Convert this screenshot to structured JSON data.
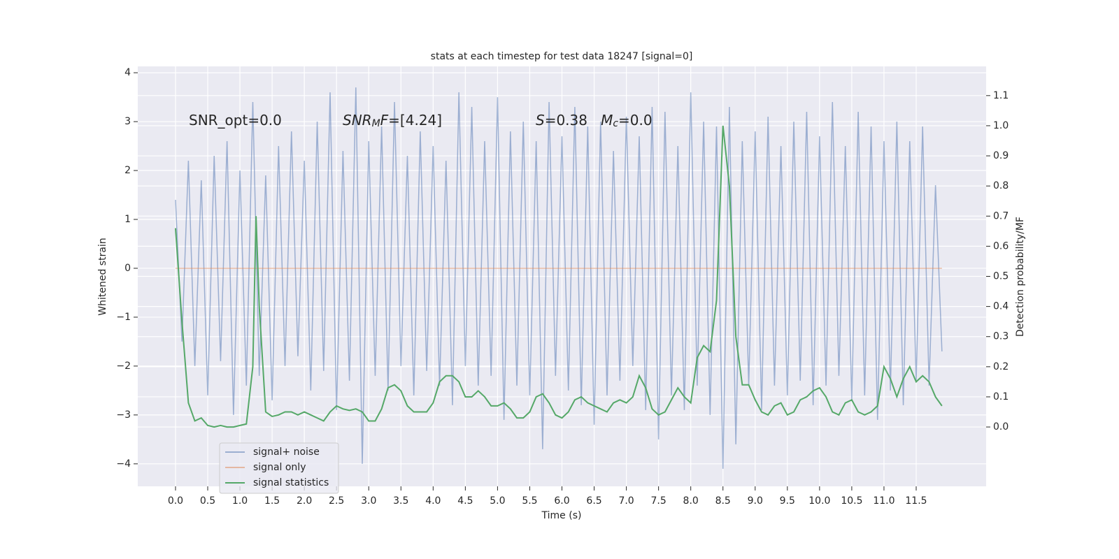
{
  "chart_data": {
    "type": "line",
    "title": "stats at each timestep for test data 18247 [signal=0]",
    "xlabel": "Time (s)",
    "ylabel": "Whitened strain",
    "y2label": "Detection probability/MF",
    "grid": true,
    "legend": "lower left",
    "xlim": [
      -0.586,
      12.586
    ],
    "ylim": [
      -4.46,
      4.13
    ],
    "y2lim": [
      -0.197,
      1.197
    ],
    "xticks": [
      {
        "value": 0,
        "label": "0.0"
      },
      0.5,
      {
        "value": 1,
        "label": "1.0"
      },
      1.5,
      {
        "value": 2,
        "label": "2.0"
      },
      2.5,
      {
        "value": 3,
        "label": "3.0"
      },
      3.5,
      {
        "value": 4,
        "label": "4.0"
      },
      4.5,
      {
        "value": 5,
        "label": "5.0"
      },
      5.5,
      {
        "value": 6,
        "label": "6.0"
      },
      6.5,
      {
        "value": 7,
        "label": "7.0"
      },
      7.5,
      {
        "value": 8,
        "label": "8.0"
      },
      8.5,
      {
        "value": 9,
        "label": "9.0"
      },
      9.5,
      {
        "value": 10,
        "label": "10.0"
      },
      10.5,
      {
        "value": 11,
        "label": "11.0"
      },
      11.5
    ],
    "yticks": [
      {
        "value": -4,
        "label": "−4"
      },
      {
        "value": -3,
        "label": "−3"
      },
      {
        "value": -2,
        "label": "−2"
      },
      {
        "value": -1,
        "label": "−1"
      },
      0,
      1,
      2,
      3,
      4
    ],
    "y2ticks": [
      {
        "value": 0,
        "label": "0.0"
      },
      0.1,
      0.2,
      0.3,
      0.4,
      0.5,
      0.6,
      0.7,
      0.8,
      0.9,
      {
        "value": 1,
        "label": "1.0"
      },
      1.1
    ],
    "annotations": [
      {
        "parts": [
          {
            "text": "SNR_opt=0.0"
          }
        ]
      },
      {
        "parts": [
          {
            "text": "SNR",
            "italic": true
          },
          {
            "text": "M",
            "italic": true,
            "sub": true
          },
          {
            "text": "F",
            "italic": true
          },
          {
            "text": "=[4.24]"
          }
        ]
      },
      {
        "parts": [
          {
            "text": "S",
            "italic": true
          },
          {
            "text": "=0.38   "
          },
          {
            "text": "M",
            "italic": true
          },
          {
            "text": "c",
            "italic": true,
            "sub": true
          },
          {
            "text": "=0.0"
          }
        ]
      }
    ],
    "x": [
      0,
      0.1,
      0.2,
      0.3,
      0.4,
      0.5,
      0.6,
      0.7,
      0.8,
      0.9,
      1,
      1.1,
      1.2,
      1.3,
      1.4,
      1.5,
      1.6,
      1.7,
      1.8,
      1.9,
      2,
      2.1,
      2.2,
      2.3,
      2.4,
      2.5,
      2.6,
      2.7,
      2.8,
      2.9,
      3,
      3.1,
      3.2,
      3.3,
      3.4,
      3.5,
      3.6,
      3.7,
      3.8,
      3.9,
      4,
      4.1,
      4.2,
      4.3,
      4.4,
      4.5,
      4.6,
      4.7,
      4.8,
      4.9,
      5,
      5.1,
      5.2,
      5.3,
      5.4,
      5.5,
      5.6,
      5.7,
      5.8,
      5.9,
      6,
      6.1,
      6.2,
      6.3,
      6.4,
      6.5,
      6.6,
      6.7,
      6.8,
      6.9,
      7,
      7.1,
      7.2,
      7.3,
      7.4,
      7.5,
      7.6,
      7.7,
      7.8,
      7.9,
      8,
      8.1,
      8.2,
      8.3,
      8.4,
      8.5,
      8.6,
      8.7,
      8.8,
      8.9,
      9,
      9.1,
      9.2,
      9.3,
      9.4,
      9.5,
      9.6,
      9.7,
      9.8,
      9.9,
      10,
      10.1,
      10.2,
      10.3,
      10.4,
      10.5,
      10.6,
      10.7,
      10.8,
      10.9,
      11,
      11.1,
      11.2,
      11.3,
      11.4,
      11.5,
      11.6,
      11.7,
      11.8,
      11.9
    ],
    "series": [
      {
        "name": "signal+ noise",
        "color": "#4c72b0",
        "opacity": 0.5,
        "values": [
          1.4,
          -1.5,
          2.2,
          -2.0,
          1.8,
          -2.6,
          2.3,
          -1.9,
          2.6,
          -3.0,
          2.0,
          -2.4,
          3.4,
          -2.2,
          1.9,
          -2.7,
          2.5,
          -2.0,
          2.8,
          -1.8,
          2.2,
          -2.5,
          3.0,
          -2.1,
          3.6,
          -2.9,
          2.4,
          -2.3,
          3.7,
          -4.0,
          2.6,
          -2.2,
          2.9,
          -2.5,
          3.4,
          -2.0,
          2.3,
          -2.6,
          2.8,
          -2.1,
          2.5,
          -2.4,
          2.2,
          -2.8,
          3.6,
          -2.0,
          3.3,
          -2.4,
          2.6,
          -2.2,
          3.5,
          -3.1,
          2.8,
          -2.4,
          3.0,
          -2.6,
          2.6,
          -3.7,
          3.4,
          -2.2,
          2.7,
          -2.5,
          3.3,
          -2.8,
          2.9,
          -3.2,
          3.0,
          -2.6,
          2.4,
          -2.3,
          3.1,
          -2.0,
          2.7,
          -2.9,
          3.3,
          -3.5,
          3.2,
          -2.6,
          2.5,
          -2.9,
          3.6,
          -2.4,
          3.0,
          -3.0,
          2.9,
          -4.1,
          3.3,
          -3.6,
          2.6,
          -2.4,
          2.8,
          -2.9,
          3.1,
          -2.4,
          2.5,
          -2.6,
          3.0,
          -2.3,
          3.2,
          -2.8,
          2.7,
          -2.4,
          3.4,
          -2.2,
          2.5,
          -2.7,
          3.2,
          -2.6,
          2.9,
          -3.1,
          2.6,
          -2.5,
          3.0,
          -2.8,
          2.6,
          -2.3,
          2.9,
          -2.4,
          1.7,
          -1.7
        ]
      },
      {
        "name": "signal only",
        "color": "#dd8452",
        "opacity": 0.5,
        "values": [
          0,
          0,
          0,
          0,
          0,
          0,
          0,
          0,
          0,
          0,
          0,
          0,
          0,
          0,
          0,
          0,
          0,
          0,
          0,
          0,
          0,
          0,
          0,
          0,
          0,
          0,
          0,
          0,
          0,
          0,
          0,
          0,
          0,
          0,
          0,
          0,
          0,
          0,
          0,
          0,
          0,
          0,
          0,
          0,
          0,
          0,
          0,
          0,
          0,
          0,
          0,
          0,
          0,
          0,
          0,
          0,
          0,
          0,
          0,
          0,
          0,
          0,
          0,
          0,
          0,
          0,
          0,
          0,
          0,
          0,
          0,
          0,
          0,
          0,
          0,
          0,
          0,
          0,
          0,
          0,
          0,
          0,
          0,
          0,
          0,
          0,
          0,
          0,
          0,
          0,
          0,
          0,
          0,
          0,
          0,
          0,
          0,
          0,
          0,
          0,
          0,
          0,
          0,
          0,
          0,
          0,
          0,
          0,
          0,
          0,
          0,
          0,
          0,
          0,
          0,
          0,
          0,
          0,
          0,
          0
        ]
      },
      {
        "name": "signal statistics",
        "color": "#55a868",
        "axis": "y2",
        "x": [
          0,
          0.1,
          0.2,
          0.3,
          0.4,
          0.5,
          0.6,
          0.7,
          0.8,
          0.9,
          1,
          1.1,
          1.2,
          1.25,
          1.3,
          1.4,
          1.5,
          1.6,
          1.7,
          1.8,
          1.9,
          2,
          2.1,
          2.2,
          2.3,
          2.4,
          2.5,
          2.6,
          2.7,
          2.8,
          2.9,
          3,
          3.1,
          3.2,
          3.3,
          3.4,
          3.5,
          3.6,
          3.7,
          3.8,
          3.9,
          4,
          4.1,
          4.2,
          4.3,
          4.4,
          4.5,
          4.6,
          4.7,
          4.8,
          4.9,
          5,
          5.1,
          5.2,
          5.3,
          5.4,
          5.5,
          5.6,
          5.7,
          5.8,
          5.9,
          6,
          6.1,
          6.2,
          6.3,
          6.4,
          6.5,
          6.6,
          6.7,
          6.8,
          6.9,
          7,
          7.1,
          7.2,
          7.3,
          7.4,
          7.5,
          7.6,
          7.7,
          7.8,
          7.9,
          8,
          8.1,
          8.2,
          8.3,
          8.4,
          8.5,
          8.6,
          8.7,
          8.8,
          8.9,
          9,
          9.1,
          9.2,
          9.3,
          9.4,
          9.5,
          9.6,
          9.7,
          9.8,
          9.9,
          10,
          10.1,
          10.2,
          10.3,
          10.4,
          10.5,
          10.6,
          10.7,
          10.8,
          10.9,
          11,
          11.1,
          11.2,
          11.3,
          11.4,
          11.5,
          11.6,
          11.7,
          11.8,
          11.9
        ],
        "values": [
          0.66,
          0.35,
          0.08,
          0.02,
          0.03,
          0.005,
          0.0,
          0.005,
          0.0,
          0.0,
          0.005,
          0.01,
          0.2,
          0.7,
          0.4,
          0.05,
          0.035,
          0.04,
          0.05,
          0.05,
          0.04,
          0.05,
          0.04,
          0.03,
          0.02,
          0.05,
          0.07,
          0.06,
          0.055,
          0.06,
          0.05,
          0.02,
          0.02,
          0.06,
          0.13,
          0.14,
          0.12,
          0.07,
          0.05,
          0.05,
          0.05,
          0.08,
          0.15,
          0.17,
          0.17,
          0.15,
          0.1,
          0.1,
          0.12,
          0.1,
          0.07,
          0.07,
          0.08,
          0.06,
          0.03,
          0.03,
          0.05,
          0.1,
          0.11,
          0.08,
          0.04,
          0.03,
          0.05,
          0.09,
          0.1,
          0.08,
          0.07,
          0.06,
          0.05,
          0.08,
          0.09,
          0.08,
          0.1,
          0.17,
          0.13,
          0.06,
          0.04,
          0.05,
          0.09,
          0.13,
          0.1,
          0.08,
          0.23,
          0.27,
          0.25,
          0.42,
          1.0,
          0.8,
          0.3,
          0.14,
          0.14,
          0.09,
          0.05,
          0.04,
          0.07,
          0.08,
          0.04,
          0.05,
          0.09,
          0.1,
          0.12,
          0.13,
          0.1,
          0.05,
          0.04,
          0.08,
          0.09,
          0.05,
          0.04,
          0.05,
          0.07,
          0.2,
          0.16,
          0.1,
          0.16,
          0.2,
          0.15,
          0.17,
          0.15,
          0.1,
          0.07
        ]
      }
    ]
  }
}
